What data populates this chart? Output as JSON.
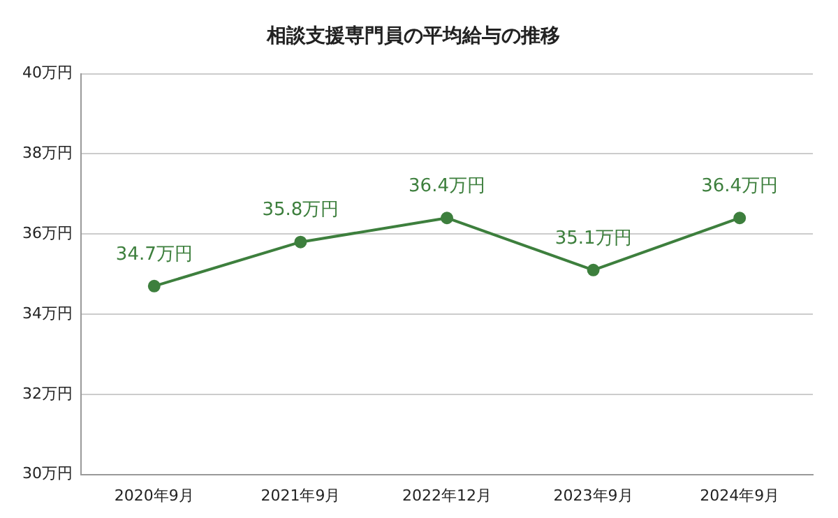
{
  "chart_data": {
    "type": "line",
    "title": "相談支援専門員の平均給与の推移",
    "categories": [
      "2020年9月",
      "2021年9月",
      "2022年12月",
      "2023年9月",
      "2024年9月"
    ],
    "series": [
      {
        "color": "#3d7f3d",
        "values": [
          34.7,
          35.8,
          36.4,
          35.1,
          36.4
        ],
        "value_labels": [
          "34.7万円",
          "35.8万円",
          "36.4万円",
          "35.1万円",
          "36.4万円"
        ]
      }
    ],
    "ylim": [
      30,
      40
    ],
    "yticks": [
      {
        "value": 30,
        "label": "30万円"
      },
      {
        "value": 32,
        "label": "32万円"
      },
      {
        "value": 34,
        "label": "34万円"
      },
      {
        "value": 36,
        "label": "36万円"
      },
      {
        "value": 38,
        "label": "38万円"
      },
      {
        "value": 40,
        "label": "40万円"
      }
    ],
    "grid": "y",
    "legend": false,
    "marker": "circle",
    "line_style": "solid"
  }
}
